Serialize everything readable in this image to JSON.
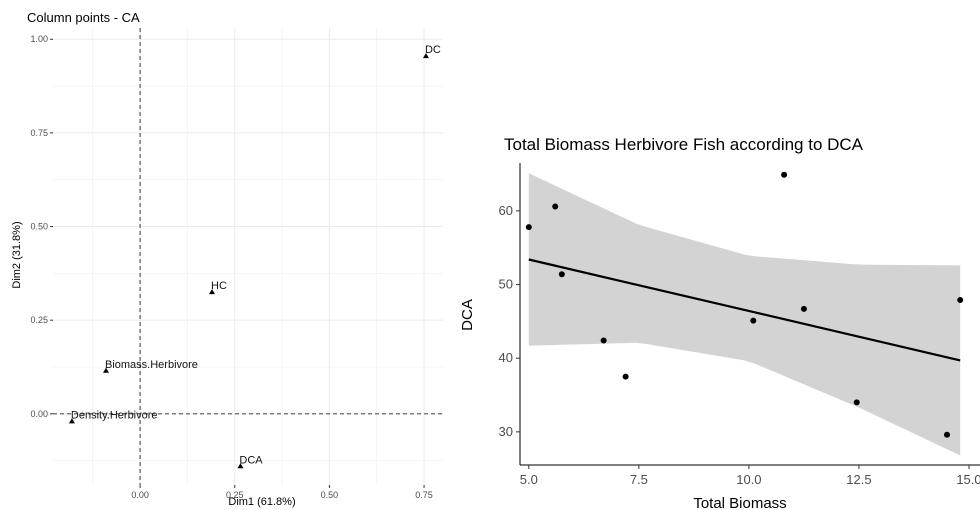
{
  "colors": {
    "grid": "#ebebeb",
    "ref_line": "#555555",
    "ribbon": "#d3d3d3",
    "point": "#000000",
    "line": "#000000",
    "tick_text": "#4d4d4d"
  },
  "chart_data": [
    {
      "type": "scatter",
      "title": "Column points - CA",
      "xlabel": "Dim1 (61.8%)",
      "ylabel": "Dim2 (31.8%)",
      "xlim": [
        -0.23,
        0.8
      ],
      "ylim": [
        -0.19,
        1.03
      ],
      "xticks": [
        0.0,
        0.25,
        0.5,
        0.75
      ],
      "xtick_labels": [
        "0.00",
        "0.25",
        "0.50",
        "0.75"
      ],
      "yticks": [
        0.0,
        0.25,
        0.5,
        0.75,
        1.0
      ],
      "ytick_labels": [
        "0.00",
        "0.25",
        "0.50",
        "0.75",
        "1.00"
      ],
      "grid": true,
      "reference_lines": {
        "x": 0,
        "y": 0,
        "style": "dashed"
      },
      "marker": "triangle",
      "points": [
        {
          "label": "DC",
          "x": 0.755,
          "y": 0.955
        },
        {
          "label": "HC",
          "x": 0.19,
          "y": 0.325
        },
        {
          "label": "Biomass.Herbivore",
          "x": -0.09,
          "y": 0.115
        },
        {
          "label": "Density.Herbivore",
          "x": -0.18,
          "y": -0.02
        },
        {
          "label": "DCA",
          "x": 0.265,
          "y": -0.14
        }
      ]
    },
    {
      "type": "scatter",
      "title": "Total Biomass Herbivore Fish according to DCA",
      "xlabel": "Total Biomass",
      "ylabel": "DCA",
      "xlim": [
        4.8,
        15.25
      ],
      "ylim": [
        25.5,
        66.5
      ],
      "xticks": [
        5.0,
        7.5,
        10.0,
        12.5,
        15.0
      ],
      "xtick_labels": [
        "5.0",
        "7.5",
        "10.0",
        "12.5",
        "15.0"
      ],
      "yticks": [
        30,
        40,
        50,
        60
      ],
      "ytick_labels": [
        "30",
        "40",
        "50",
        "60"
      ],
      "grid": false,
      "points": [
        {
          "x": 5.0,
          "y": 57.8
        },
        {
          "x": 5.6,
          "y": 60.6
        },
        {
          "x": 5.75,
          "y": 51.4
        },
        {
          "x": 6.7,
          "y": 42.4
        },
        {
          "x": 7.2,
          "y": 37.5
        },
        {
          "x": 10.1,
          "y": 45.1
        },
        {
          "x": 10.8,
          "y": 64.9
        },
        {
          "x": 11.25,
          "y": 46.7
        },
        {
          "x": 12.45,
          "y": 34.0
        },
        {
          "x": 14.5,
          "y": 29.6
        },
        {
          "x": 14.8,
          "y": 47.9
        }
      ],
      "trend_line": {
        "x": [
          5.0,
          14.8
        ],
        "y": [
          53.4,
          39.7
        ]
      },
      "confidence_band": {
        "x": [
          5.0,
          7.5,
          10.0,
          12.5,
          14.8
        ],
        "upper": [
          65.1,
          58.1,
          53.9,
          52.7,
          52.6
        ],
        "lower": [
          41.7,
          42.1,
          39.6,
          33.3,
          26.8
        ]
      }
    }
  ]
}
